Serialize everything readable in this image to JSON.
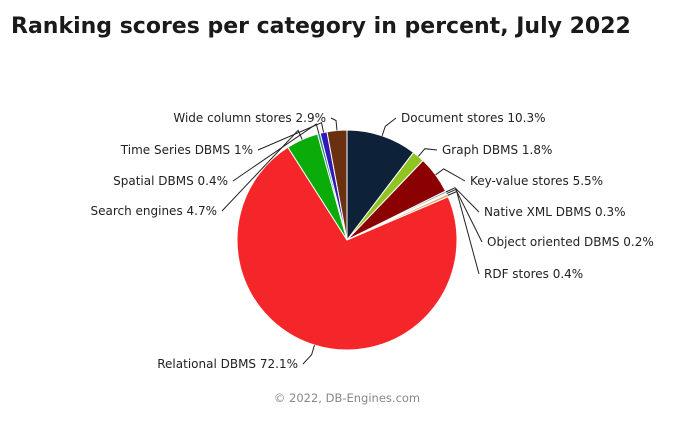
{
  "chart_data": {
    "type": "pie",
    "title": "Ranking scores per category in percent, July 2022",
    "credit": "© 2022, DB-Engines.com",
    "unit": "%",
    "slices": [
      {
        "label": "Document stores",
        "value": 10.3,
        "display": "Document stores 10.3%",
        "color": "#0d2138"
      },
      {
        "label": "Graph DBMS",
        "value": 1.8,
        "display": "Graph DBMS 1.8%",
        "color": "#8fc423"
      },
      {
        "label": "Key-value stores",
        "value": 5.5,
        "display": "Key-value stores 5.5%",
        "color": "#8b0000"
      },
      {
        "label": "Native XML DBMS",
        "value": 0.3,
        "display": "Native XML DBMS 0.3%",
        "color": "#7ea3c3"
      },
      {
        "label": "Object oriented DBMS",
        "value": 0.2,
        "display": "Object oriented DBMS 0.2%",
        "color": "#c9c9c9"
      },
      {
        "label": "RDF stores",
        "value": 0.4,
        "display": "RDF stores 0.4%",
        "color": "#e8a85c"
      },
      {
        "label": "Relational DBMS",
        "value": 72.1,
        "display": "Relational DBMS 72.1%",
        "color": "#f5262a"
      },
      {
        "label": "Search engines",
        "value": 4.7,
        "display": "Search engines 4.7%",
        "color": "#0aac0a"
      },
      {
        "label": "Spatial DBMS",
        "value": 0.4,
        "display": "Spatial DBMS 0.4%",
        "color": "#2a8a8a"
      },
      {
        "label": "Time Series DBMS",
        "value": 1.0,
        "display": "Time Series DBMS 1%",
        "color": "#3119b8"
      },
      {
        "label": "Wide column stores",
        "value": 2.9,
        "display": "Wide column stores 2.9%",
        "color": "#6b3010"
      }
    ]
  }
}
